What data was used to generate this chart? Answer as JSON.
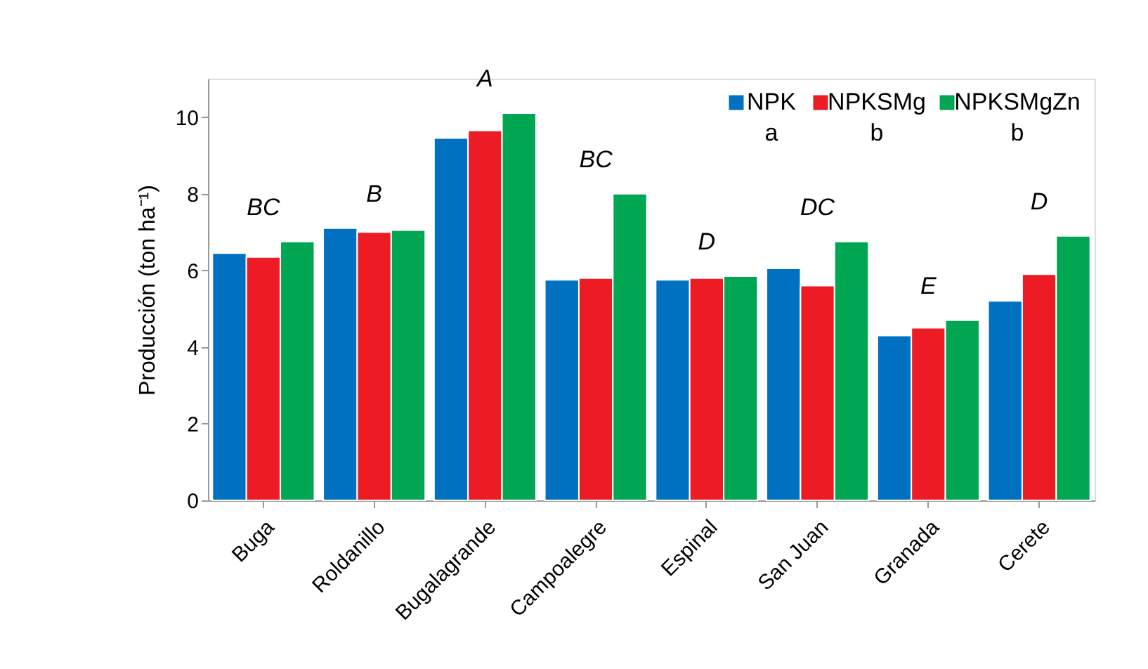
{
  "chart_data": {
    "type": "bar",
    "ylabel": "Producción (ton ha⁻¹)",
    "categories": [
      "Buga",
      "Roldanillo",
      "Bugalagrande",
      "Campoalegre",
      "Espinal",
      "San Juan",
      "Granada",
      "Cerete"
    ],
    "series": [
      {
        "name": "NPK\na",
        "color": "#0070c0",
        "values": [
          6.45,
          7.1,
          9.45,
          5.75,
          5.75,
          6.05,
          4.3,
          5.2
        ]
      },
      {
        "name": "NPKSMg\nb",
        "color": "#ed1c24",
        "values": [
          6.35,
          7.0,
          9.65,
          5.8,
          5.8,
          5.6,
          4.5,
          5.9
        ]
      },
      {
        "name": "NPKSMgZn\nb",
        "color": "#00a651",
        "values": [
          6.75,
          7.05,
          10.1,
          8.0,
          5.85,
          6.75,
          4.7,
          6.9
        ]
      }
    ],
    "annotations": [
      "BC",
      "B",
      "A",
      "BC",
      "D",
      "DC",
      "E",
      "D"
    ],
    "ylim": [
      0,
      11
    ],
    "yticks": [
      0,
      2,
      4,
      6,
      8,
      10
    ],
    "grid": false,
    "legend": "top right"
  }
}
